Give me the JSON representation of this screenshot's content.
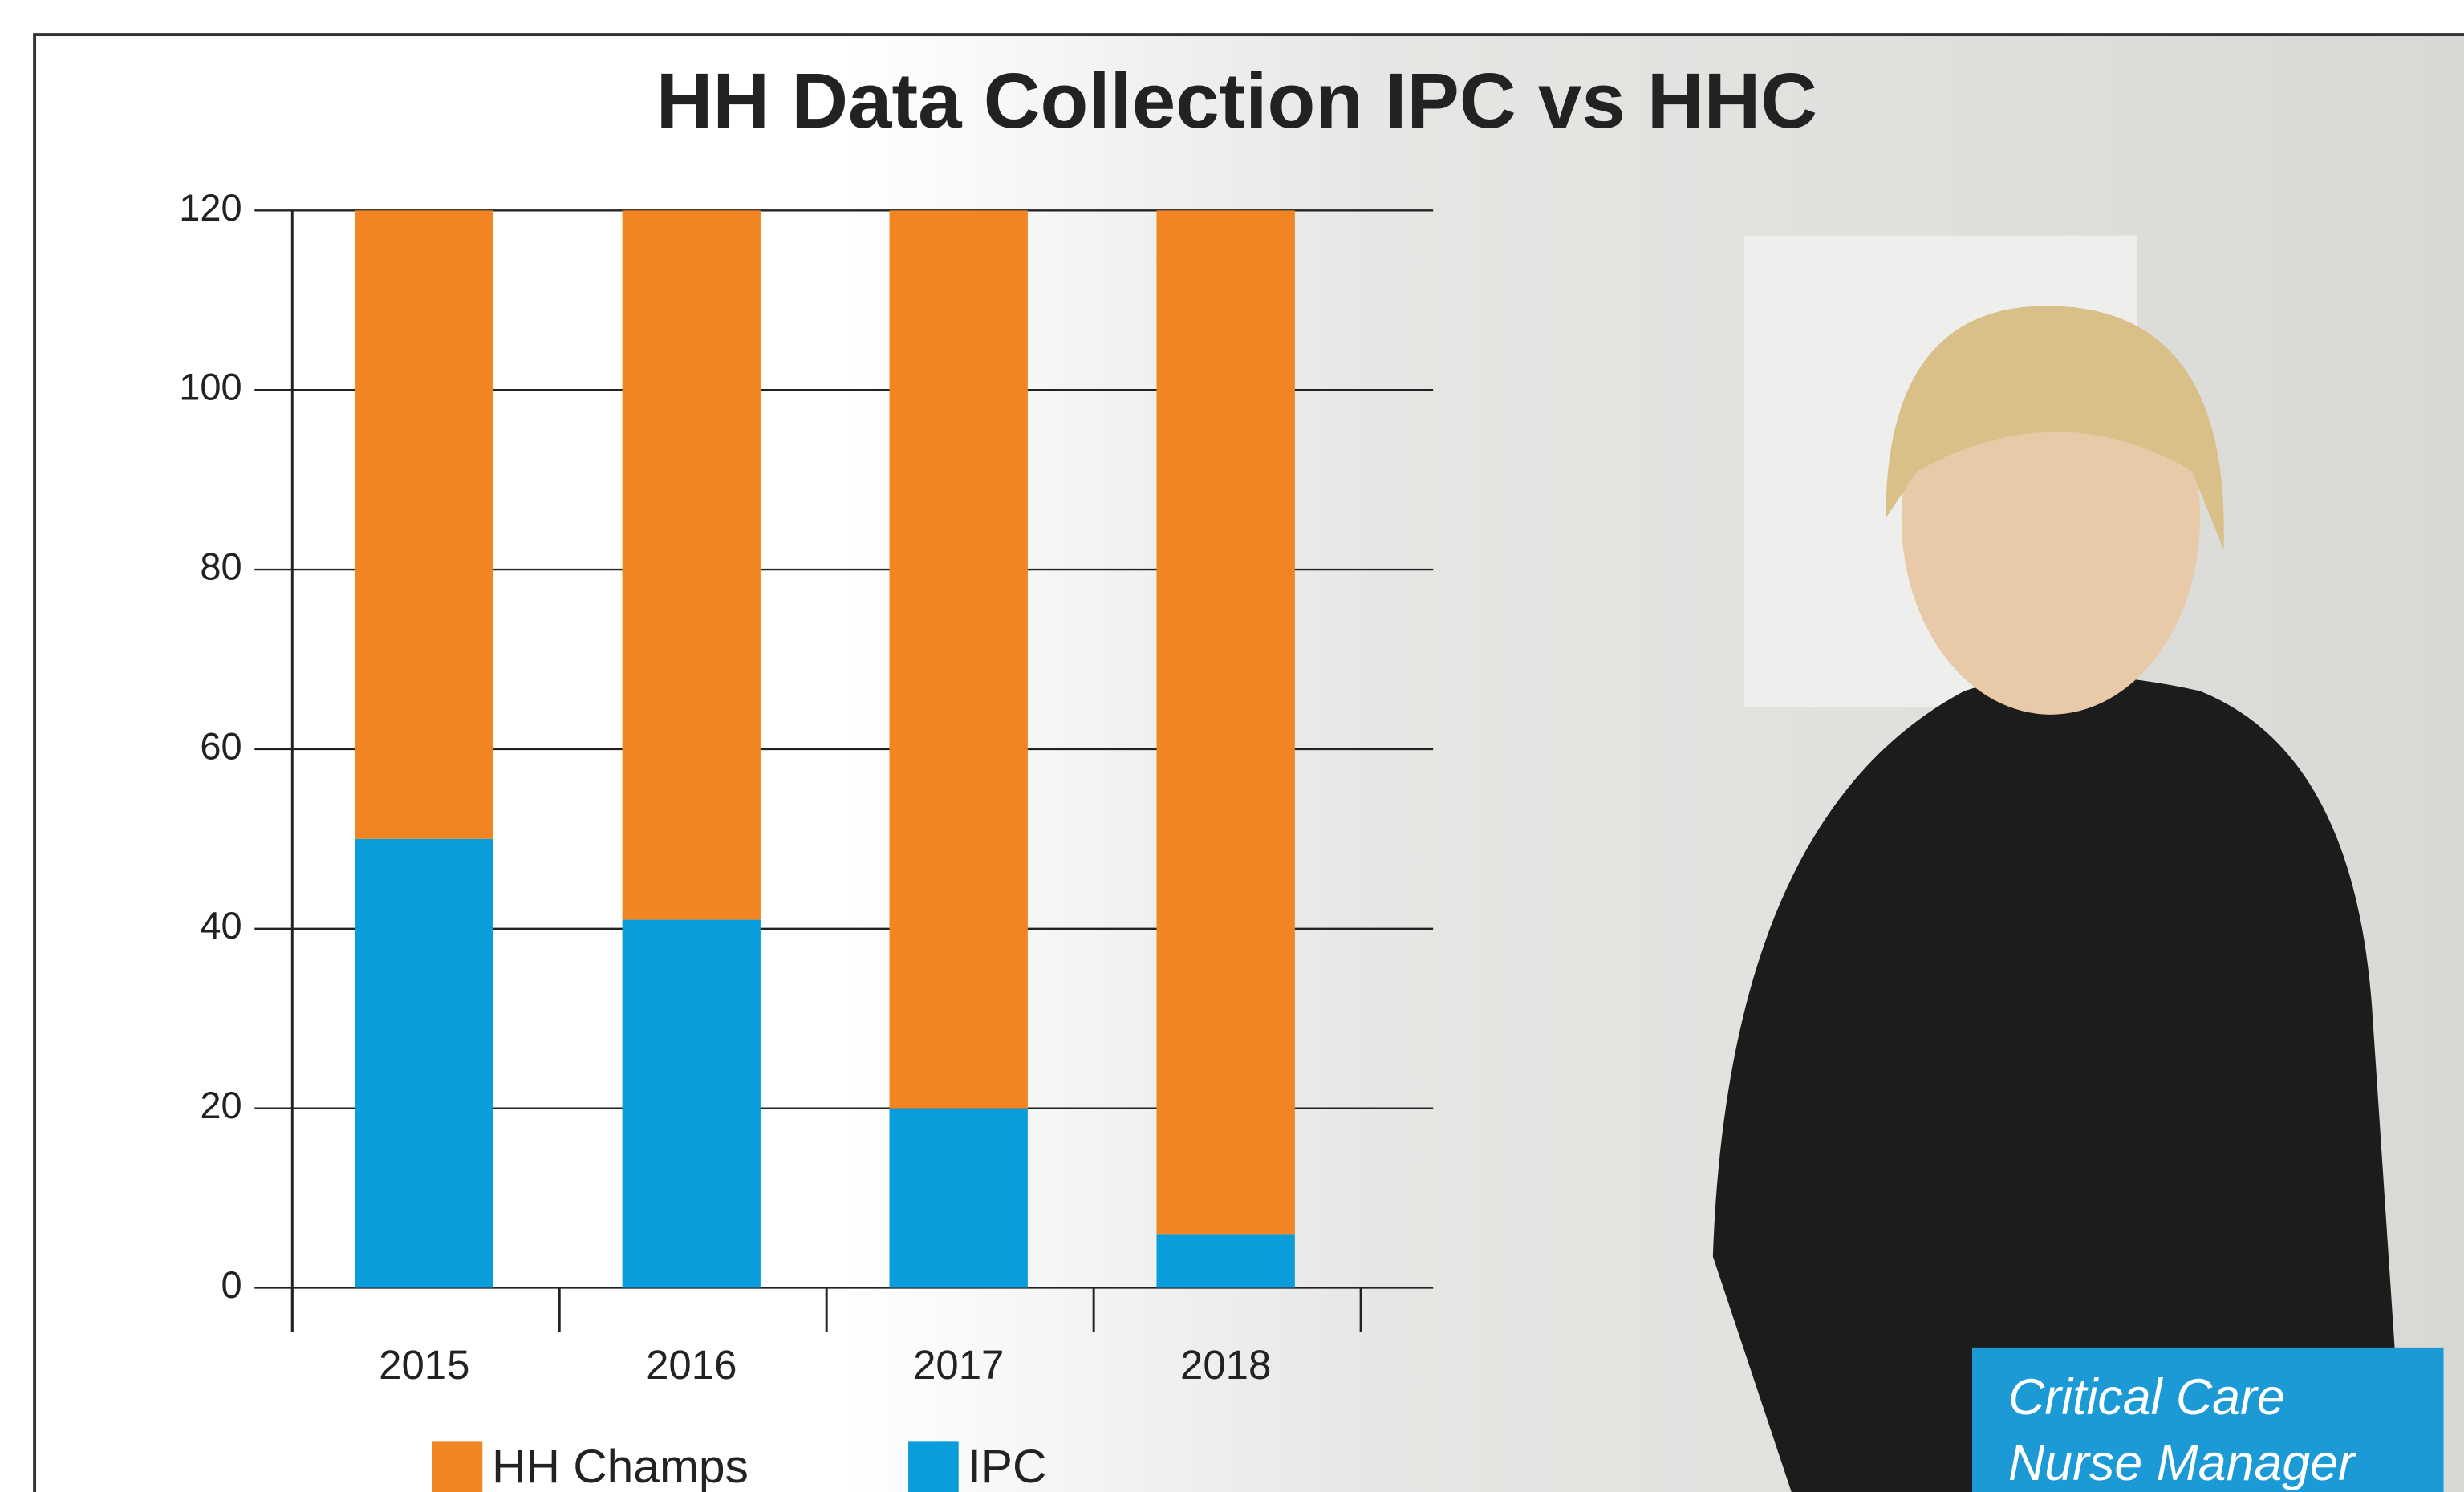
{
  "chart_data": {
    "type": "stacked_bar",
    "title": "HH Data Collection IPC vs HHC",
    "categories": [
      "2015",
      "2016",
      "2017",
      "2018"
    ],
    "series": [
      {
        "name": "IPC",
        "color": "#0a9ddb",
        "values": [
          50,
          41,
          20,
          6
        ]
      },
      {
        "name": "HH Champs",
        "color": "#f28523",
        "values": [
          70,
          79,
          100,
          114
        ]
      }
    ],
    "legend_order": [
      "HH Champs",
      "IPC"
    ],
    "ylim": [
      0,
      120
    ],
    "yticks": [
      0,
      20,
      40,
      60,
      80,
      100,
      120
    ],
    "grid": true
  },
  "caption": {
    "lines": [
      "Critical Care",
      "Nurse Manager"
    ]
  }
}
